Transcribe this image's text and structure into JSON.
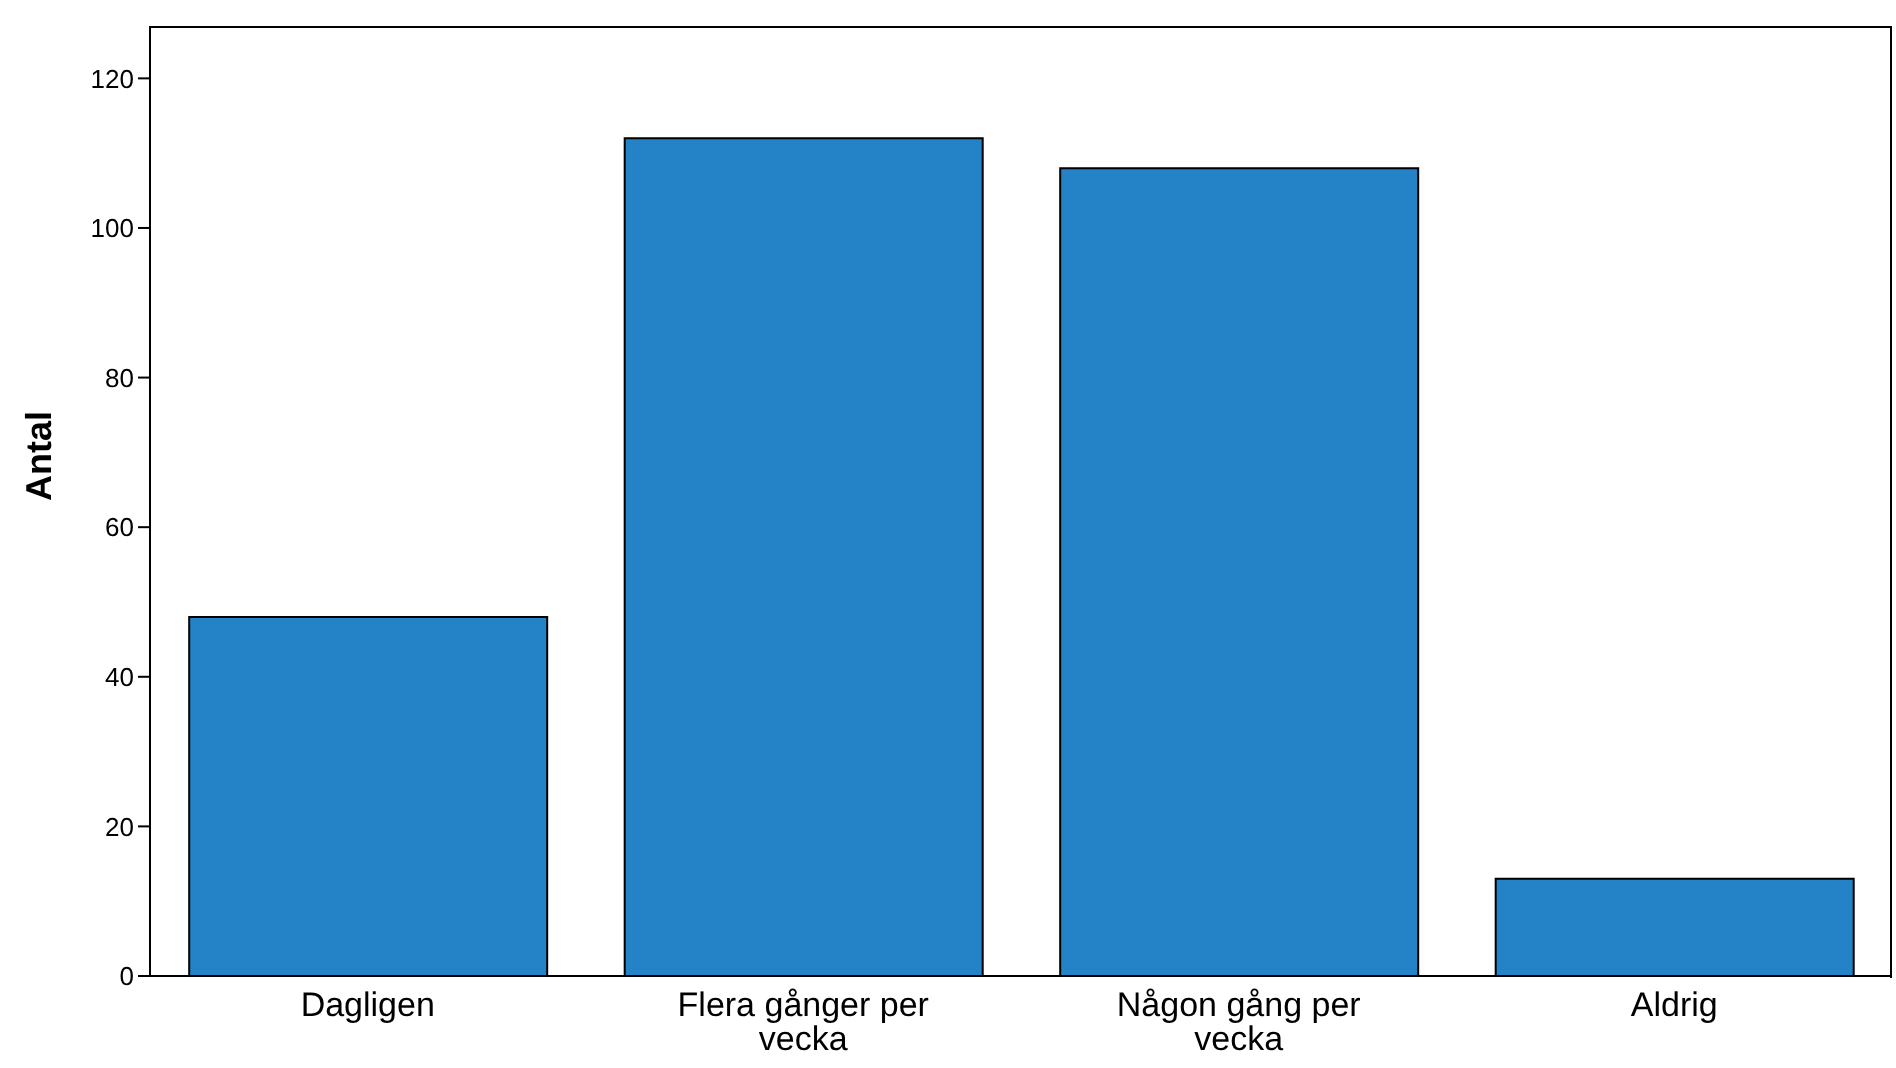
{
  "chart_data": {
    "type": "bar",
    "ylabel": "Antal",
    "categories": [
      "Dagligen",
      "Flera gånger per vecka",
      "Någon gång per vecka",
      "Aldrig"
    ],
    "values": [
      48,
      112,
      108,
      13
    ],
    "color": "#2383c6",
    "ylim": [
      0,
      127
    ],
    "yticks": [
      0,
      20,
      40,
      60,
      80,
      100,
      120
    ]
  }
}
